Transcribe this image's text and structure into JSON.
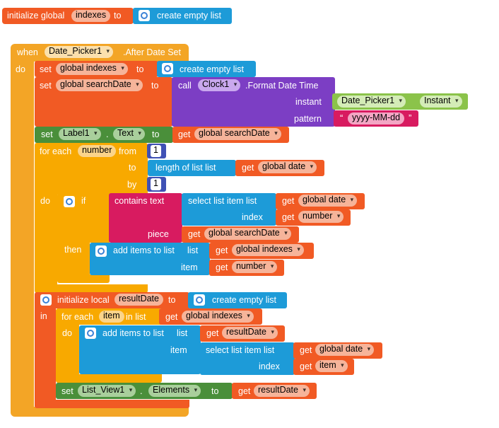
{
  "global_init": {
    "keyword": "initialize global",
    "var_name": "indexes",
    "to": "to",
    "value": "create empty list"
  },
  "event": {
    "when": "when",
    "component": "Date_Picker1",
    "event_name": ".After Date Set",
    "do": "do"
  },
  "stmt_set_indexes": {
    "set": "set",
    "var": "global indexes",
    "to": "to",
    "value": "create empty list"
  },
  "stmt_set_search": {
    "set": "set",
    "var": "global searchDate",
    "to": "to",
    "call": "call",
    "component": "Clock1",
    "method": ".Format Date Time",
    "instant_label": "instant",
    "instant_component": "Date_Picker1",
    "instant_prop": "Instant",
    "pattern_label": "pattern",
    "pattern_open_quote": "“",
    "pattern_value": "yyyy-MM-dd",
    "pattern_close_quote": "”"
  },
  "stmt_set_label": {
    "set": "set",
    "component": "Label1",
    "dot": ".",
    "prop": "Text",
    "to": "to",
    "get": "get",
    "var": "global searchDate"
  },
  "for_range": {
    "for_each": "for each",
    "var": "number",
    "from_label": "from",
    "from_value": "1",
    "to_label": "to",
    "length_of_list": "length of list  list",
    "length_get": "get",
    "length_var": "global date",
    "by_label": "by",
    "by_value": "1",
    "do": "do"
  },
  "if_block": {
    "if": "if",
    "contains": "contains  text",
    "select_list_item": "select list item  list",
    "select_list_get": "get",
    "select_list_var": "global date",
    "index_label": "index",
    "index_get": "get",
    "index_var": "number",
    "piece_label": "piece",
    "piece_get": "get",
    "piece_var": "global searchDate",
    "then": "then",
    "add_items": "add items to list",
    "add_list_label": "list",
    "add_list_get": "get",
    "add_list_var": "global indexes",
    "add_item_label": "item",
    "add_item_get": "get",
    "add_item_var": "number"
  },
  "local_init": {
    "keyword": "initialize local",
    "var_name": "resultDate",
    "to": "to",
    "value": "create empty list",
    "in": "in"
  },
  "for_list": {
    "for_each": "for each",
    "var": "item",
    "in_list": "in list",
    "get": "get",
    "list_var": "global indexes",
    "do": "do",
    "add_items": "add items to list",
    "list_label": "list",
    "list_get": "get",
    "list_var2": "resultDate",
    "item_label": "item",
    "select_list_item": "select list item  list",
    "select_get": "get",
    "select_var": "global date",
    "index_label": "index",
    "index_get": "get",
    "index_var": "item"
  },
  "set_elements": {
    "set": "set",
    "component": "List_View1",
    "dot": ".",
    "prop": "Elements",
    "to": "to",
    "get": "get",
    "var": "resultDate"
  },
  "colors": {
    "event": "#f3a526",
    "variables": "#f15a24",
    "lists": "#1d9bd8",
    "component_method": "#7c3ec4",
    "component_setter": "#4a8f3a",
    "component_getter": "#8bc34a",
    "text": "#d81b60",
    "control": "#f8a900",
    "math": "#3f51b5"
  },
  "icons": {
    "mutator": "gear-icon",
    "dropdown": "chevron-down-icon"
  }
}
